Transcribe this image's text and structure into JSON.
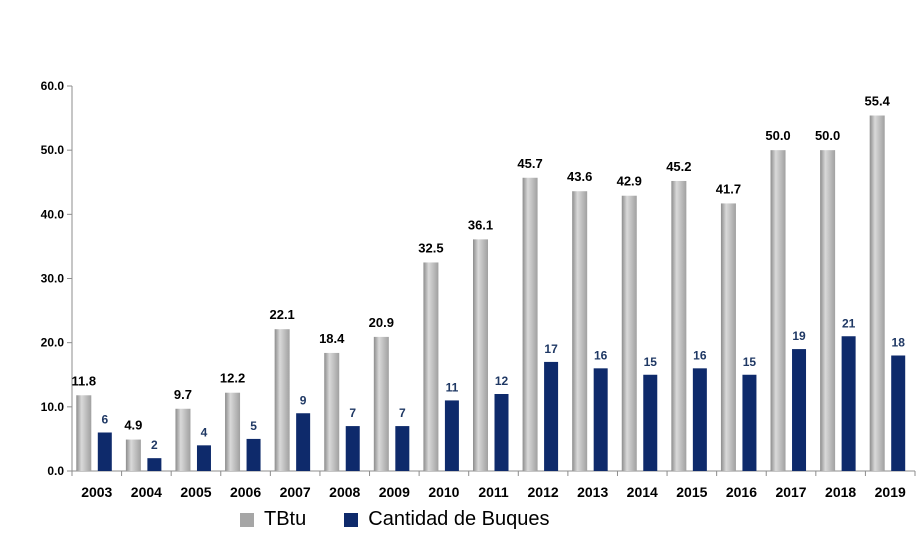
{
  "chart_data": {
    "type": "bar",
    "title": "",
    "xlabel": "",
    "ylabel": "",
    "categories": [
      "2003",
      "2004",
      "2005",
      "2006",
      "2007",
      "2008",
      "2009",
      "2010",
      "2011",
      "2012",
      "2013",
      "2014",
      "2015",
      "2016",
      "2017",
      "2018",
      "2019"
    ],
    "series": [
      {
        "name": "TBtu",
        "color": "#a6a6a6",
        "values": [
          11.8,
          4.9,
          9.7,
          12.2,
          22.1,
          18.4,
          20.9,
          32.5,
          36.1,
          45.7,
          43.6,
          42.9,
          45.2,
          41.7,
          50.0,
          50.0,
          55.4
        ],
        "labels": [
          "11.8",
          "4.9",
          "9.7",
          "12.2",
          "22.1",
          "18.4",
          "20.9",
          "32.5",
          "36.1",
          "45.7",
          "43.6",
          "42.9",
          "45.2",
          "41.7",
          "50.0",
          "50.0",
          "55.4"
        ]
      },
      {
        "name": "Cantidad de Buques",
        "color": "#0e2a6b",
        "values": [
          6,
          2,
          4,
          5,
          9,
          7,
          7,
          11,
          12,
          17,
          16,
          15,
          16,
          15,
          19,
          21,
          18
        ],
        "labels": [
          "6",
          "2",
          "4",
          "5",
          "9",
          "7",
          "7",
          "11",
          "12",
          "17",
          "16",
          "15",
          "16",
          "15",
          "19",
          "21",
          "18"
        ]
      }
    ],
    "ylim": [
      0,
      60
    ],
    "yticks": [
      "0.0",
      "10.0",
      "20.0",
      "30.0",
      "40.0",
      "50.0",
      "60.0"
    ],
    "grid": false,
    "legend_position": "bottom"
  }
}
